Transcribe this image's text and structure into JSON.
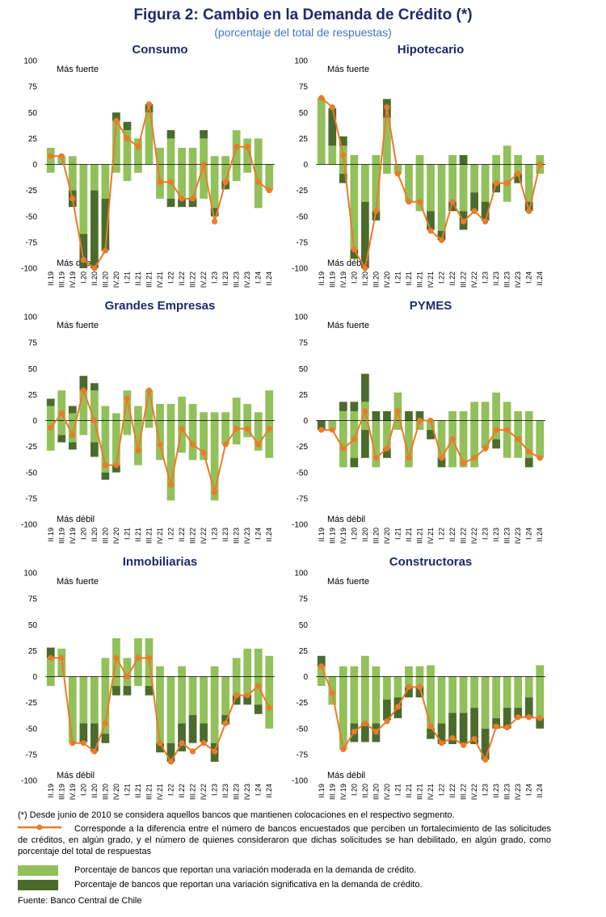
{
  "header": {
    "title": "Figura 2: Cambio en la Demanda de Crédito (*)",
    "subtitle": "(porcentaje del total de respuestas)"
  },
  "colors": {
    "moderate": "#92c05a",
    "significant": "#4b6b2c",
    "line": "#ec7a28"
  },
  "axis_labels": {
    "stronger": "Más fuerte",
    "weaker": "Más débil"
  },
  "chart_data": [
    {
      "type": "bar",
      "title": "Consumo",
      "ylim": [
        -100,
        100
      ],
      "yticks": [
        -100,
        -75,
        -50,
        -25,
        0,
        25,
        50,
        75,
        100
      ],
      "categories": [
        "II.19",
        "III.19",
        "IV.19",
        "I.20",
        "II.20",
        "III.20",
        "IV.20",
        "I.21",
        "II.21",
        "III.21",
        "IV.21",
        "I.22",
        "II.22",
        "III.22",
        "IV.22",
        "I.23",
        "II.23",
        "III.23",
        "IV.23",
        "I.24",
        "II.24"
      ],
      "series": [
        {
          "name": "Moderada (+)",
          "values": [
            16,
            8,
            8,
            0,
            0,
            0,
            42,
            33,
            25,
            50,
            16,
            25,
            16,
            16,
            25,
            8,
            8,
            33,
            25,
            25,
            0
          ]
        },
        {
          "name": "Significativa (+)",
          "values": [
            0,
            0,
            0,
            0,
            0,
            0,
            8,
            8,
            0,
            8,
            0,
            8,
            0,
            0,
            8,
            0,
            0,
            0,
            0,
            0,
            0
          ]
        },
        {
          "name": "Moderada (-)",
          "values": [
            -8,
            0,
            -25,
            -67,
            -25,
            -33,
            -8,
            -16,
            -8,
            0,
            -33,
            -33,
            -33,
            -33,
            -33,
            -42,
            -16,
            -16,
            -8,
            -42,
            -25
          ]
        },
        {
          "name": "Significativa (-)",
          "values": [
            0,
            0,
            -16,
            -33,
            -75,
            -50,
            0,
            0,
            0,
            0,
            0,
            -8,
            -8,
            -8,
            0,
            -8,
            -8,
            0,
            0,
            0,
            0
          ]
        },
        {
          "name": "Diferencia",
          "values": [
            8,
            8,
            -33,
            -92,
            -100,
            -83,
            42,
            25,
            17,
            58,
            -17,
            -17,
            -33,
            -33,
            0,
            -55,
            -17,
            17,
            17,
            -17,
            -25
          ]
        }
      ]
    },
    {
      "type": "bar",
      "title": "Hipotecario",
      "ylim": [
        -100,
        100
      ],
      "yticks": [
        -100,
        -75,
        -50,
        -25,
        0,
        25,
        50,
        75,
        100
      ],
      "categories": [
        "II.19",
        "III.19",
        "IV.19",
        "I.20",
        "II.20",
        "III.20",
        "IV.20",
        "I.21",
        "II.21",
        "III.21",
        "IV.21",
        "I.22",
        "II.22",
        "III.22",
        "IV.22",
        "I.23",
        "II.23",
        "III.23",
        "IV.23",
        "I.24",
        "II.24"
      ],
      "series": [
        {
          "name": "Moderada (+)",
          "values": [
            64,
            18,
            18,
            9,
            0,
            9,
            45,
            0,
            0,
            9,
            0,
            0,
            9,
            0,
            0,
            0,
            9,
            18,
            9,
            0,
            9
          ]
        },
        {
          "name": "Significativa (+)",
          "values": [
            0,
            36,
            9,
            0,
            0,
            0,
            18,
            0,
            0,
            0,
            0,
            0,
            0,
            9,
            0,
            0,
            0,
            0,
            0,
            0,
            0
          ]
        },
        {
          "name": "Moderada (-)",
          "values": [
            0,
            0,
            -9,
            -82,
            -36,
            -45,
            -9,
            -9,
            -36,
            -45,
            -45,
            -64,
            -36,
            -45,
            -27,
            -36,
            -18,
            -36,
            -9,
            -36,
            -9
          ]
        },
        {
          "name": "Significativa (-)",
          "values": [
            0,
            0,
            -9,
            -9,
            -64,
            -9,
            0,
            0,
            0,
            0,
            -18,
            -9,
            -9,
            -18,
            -18,
            -18,
            -9,
            0,
            -9,
            -9,
            0
          ]
        },
        {
          "name": "Diferencia",
          "values": [
            64,
            55,
            9,
            -82,
            -100,
            -45,
            55,
            -9,
            -36,
            -36,
            -64,
            -73,
            -36,
            -55,
            -45,
            -55,
            -18,
            -18,
            -9,
            -45,
            0
          ]
        }
      ]
    },
    {
      "type": "bar",
      "title": "Grandes Empresas",
      "ylim": [
        -100,
        100
      ],
      "yticks": [
        -100,
        -75,
        -50,
        -25,
        0,
        25,
        50,
        75,
        100
      ],
      "categories": [
        "II.19",
        "III.19",
        "IV.19",
        "I.20",
        "II.20",
        "III.20",
        "IV.20",
        "I.21",
        "II.21",
        "III.21",
        "IV.21",
        "I.22",
        "II.22",
        "III.22",
        "IV.22",
        "I.23",
        "II.23",
        "III.23",
        "IV.23",
        "I.24",
        "II.24"
      ],
      "series": [
        {
          "name": "Moderada (+)",
          "values": [
            14,
            29,
            7,
            29,
            29,
            14,
            7,
            29,
            14,
            29,
            16,
            16,
            23,
            16,
            8,
            8,
            8,
            22,
            16,
            8,
            29
          ]
        },
        {
          "name": "Significativa (+)",
          "values": [
            7,
            0,
            7,
            14,
            7,
            0,
            0,
            0,
            0,
            0,
            0,
            0,
            0,
            0,
            0,
            0,
            0,
            0,
            0,
            0,
            0
          ]
        },
        {
          "name": "Moderada (-)",
          "values": [
            -29,
            -14,
            -21,
            -14,
            -21,
            -50,
            -43,
            -14,
            -43,
            -7,
            -38,
            -77,
            -31,
            -38,
            -38,
            -77,
            -23,
            -23,
            -16,
            -29,
            -36
          ]
        },
        {
          "name": "Significativa (-)",
          "values": [
            0,
            -7,
            -7,
            0,
            -14,
            -7,
            -7,
            0,
            0,
            0,
            0,
            0,
            0,
            0,
            0,
            0,
            0,
            0,
            0,
            0,
            0
          ]
        },
        {
          "name": "Diferencia",
          "values": [
            -7,
            7,
            -14,
            29,
            0,
            -43,
            -43,
            21,
            -29,
            29,
            -23,
            -62,
            -8,
            -23,
            -31,
            -69,
            -23,
            -8,
            -8,
            -23,
            -8
          ]
        }
      ]
    },
    {
      "type": "bar",
      "title": "PYMES",
      "ylim": [
        -100,
        100
      ],
      "yticks": [
        -100,
        -75,
        -50,
        -25,
        0,
        25,
        50,
        75,
        100
      ],
      "categories": [
        "II.19",
        "III.19",
        "IV.19",
        "I.20",
        "II.20",
        "III.20",
        "IV.20",
        "I.21",
        "II.21",
        "III.21",
        "IV.21",
        "I.22",
        "II.22",
        "III.22",
        "IV.22",
        "I.23",
        "II.23",
        "III.23",
        "IV.23",
        "I.24",
        "II.24"
      ],
      "series": [
        {
          "name": "Moderada (+)",
          "values": [
            0,
            0,
            9,
            9,
            18,
            0,
            0,
            27,
            0,
            0,
            0,
            0,
            9,
            9,
            18,
            18,
            27,
            18,
            9,
            9,
            0
          ]
        },
        {
          "name": "Significativa (+)",
          "values": [
            0,
            0,
            9,
            9,
            27,
            9,
            9,
            0,
            9,
            9,
            0,
            0,
            0,
            0,
            0,
            0,
            0,
            0,
            0,
            0,
            0
          ]
        },
        {
          "name": "Moderada (-)",
          "values": [
            0,
            -9,
            -45,
            -36,
            -9,
            -45,
            -27,
            -9,
            -45,
            -9,
            -9,
            -36,
            -45,
            -45,
            -45,
            -27,
            -18,
            -36,
            -36,
            -36,
            -36
          ]
        },
        {
          "name": "Significativa (-)",
          "values": [
            -9,
            0,
            0,
            -9,
            -27,
            0,
            -9,
            0,
            0,
            0,
            -9,
            -9,
            0,
            0,
            0,
            0,
            -9,
            0,
            0,
            -9,
            0
          ]
        },
        {
          "name": "Diferencia",
          "values": [
            -9,
            -9,
            -27,
            -18,
            9,
            -36,
            -27,
            9,
            -36,
            0,
            0,
            -36,
            -18,
            -41,
            -36,
            -27,
            -9,
            -9,
            -18,
            -30,
            -36
          ]
        }
      ]
    },
    {
      "type": "bar",
      "title": "Inmobiliarias",
      "ylim": [
        -100,
        100
      ],
      "yticks": [
        -100,
        -75,
        -50,
        -25,
        0,
        25,
        50,
        75,
        100
      ],
      "categories": [
        "II.19",
        "III.19",
        "IV.19",
        "I.20",
        "II.20",
        "III.20",
        "IV.20",
        "I.21",
        "II.21",
        "III.21",
        "IV.21",
        "I.22",
        "II.22",
        "III.22",
        "IV.22",
        "I.23",
        "II.23",
        "III.23",
        "IV.23",
        "I.24",
        "II.24"
      ],
      "series": [
        {
          "name": "Moderada (+)",
          "values": [
            18,
            27,
            0,
            0,
            0,
            18,
            37,
            18,
            37,
            37,
            10,
            0,
            10,
            0,
            0,
            10,
            0,
            18,
            27,
            27,
            20
          ]
        },
        {
          "name": "Significativa (+)",
          "values": [
            10,
            0,
            0,
            0,
            0,
            0,
            0,
            0,
            0,
            0,
            0,
            0,
            0,
            0,
            0,
            0,
            0,
            0,
            0,
            0,
            0
          ]
        },
        {
          "name": "Moderada (-)",
          "values": [
            -9,
            0,
            -64,
            -45,
            -45,
            -55,
            -9,
            -9,
            -9,
            -9,
            -64,
            -64,
            -45,
            -37,
            -45,
            -64,
            -37,
            -18,
            -18,
            -27,
            -50
          ]
        },
        {
          "name": "Significativa (-)",
          "values": [
            0,
            0,
            0,
            -18,
            -27,
            -9,
            -9,
            -9,
            0,
            -9,
            -9,
            -18,
            -27,
            -27,
            -18,
            -18,
            -9,
            -9,
            -9,
            -9,
            0
          ]
        },
        {
          "name": "Diferencia",
          "values": [
            18,
            18,
            -64,
            -64,
            -72,
            -45,
            18,
            0,
            18,
            18,
            -64,
            -82,
            -64,
            -72,
            -64,
            -72,
            -45,
            -18,
            -18,
            -9,
            -30
          ]
        }
      ]
    },
    {
      "type": "bar",
      "title": "Constructoras",
      "ylim": [
        -100,
        100
      ],
      "yticks": [
        -100,
        -75,
        -50,
        -25,
        0,
        25,
        50,
        75,
        100
      ],
      "categories": [
        "II.19",
        "III.19",
        "IV.19",
        "I.20",
        "II.20",
        "III.20",
        "IV.20",
        "I.21",
        "II.21",
        "III.21",
        "IV.21",
        "I.22",
        "II.22",
        "III.22",
        "IV.22",
        "I.23",
        "II.23",
        "III.23",
        "IV.23",
        "I.24",
        "II.24"
      ],
      "series": [
        {
          "name": "Moderada (+)",
          "values": [
            10,
            0,
            10,
            10,
            20,
            10,
            0,
            0,
            10,
            10,
            11,
            0,
            0,
            0,
            0,
            0,
            0,
            0,
            0,
            0,
            11
          ]
        },
        {
          "name": "Significativa (+)",
          "values": [
            10,
            0,
            0,
            0,
            0,
            0,
            0,
            0,
            0,
            0,
            0,
            0,
            0,
            0,
            0,
            0,
            0,
            0,
            0,
            0,
            0
          ]
        },
        {
          "name": "Moderada (-)",
          "values": [
            -9,
            -27,
            -70,
            -45,
            -45,
            -45,
            -22,
            -20,
            -10,
            -10,
            -50,
            -45,
            -35,
            -35,
            -30,
            -50,
            -40,
            -30,
            -30,
            -20,
            -40
          ]
        },
        {
          "name": "Significativa (-)",
          "values": [
            0,
            0,
            0,
            -18,
            -18,
            -18,
            -20,
            -20,
            -10,
            -10,
            -10,
            -20,
            -30,
            -30,
            -35,
            -30,
            -10,
            -20,
            -10,
            -20,
            -10
          ]
        },
        {
          "name": "Diferencia",
          "values": [
            10,
            -16,
            -70,
            -53,
            -45,
            -53,
            -43,
            -29,
            -10,
            -10,
            -48,
            -64,
            -59,
            -66,
            -60,
            -80,
            -48,
            -49,
            -39,
            -39,
            -40
          ]
        }
      ]
    }
  ],
  "notes": {
    "footnote": "(*) Desde junio de 2010 se considera aquellos bancos que mantienen colocaciones en el respectivo segmento.",
    "line_legend": "Corresponde a la diferencia entre el número de bancos encuestados que perciben un fortalecimiento de las solicitudes de créditos, en algún grado, y el número de quienes consideraron que dichas solicitudes se han debilitado, en algún grado, como porcentaje del total de respuestas",
    "moderate_legend": "Porcentaje de bancos que reportan una variación moderada en la demanda de crédito.",
    "significant_legend": "Porcentaje de bancos que reportan una variación significativa en la demanda de crédito.",
    "source": "Fuente: Banco Central de Chile"
  }
}
